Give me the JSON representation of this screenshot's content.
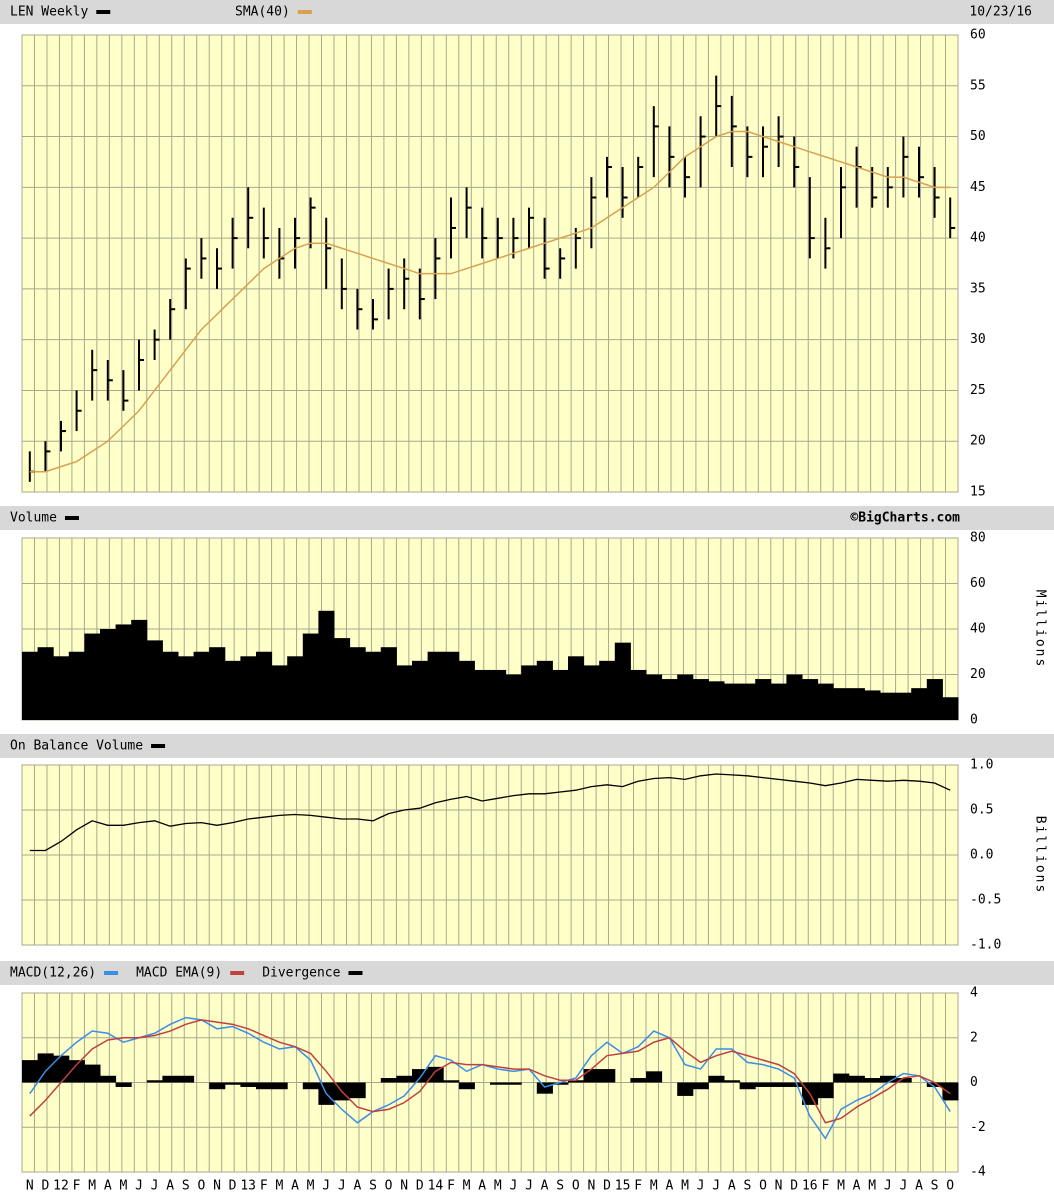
{
  "chart_data": [
    {
      "type": "hlc",
      "date": "10/23/16",
      "ohlc": {
        "name": "LEN Weekly",
        "color": "#000000",
        "high": [
          19,
          20,
          22,
          25,
          29,
          28,
          27,
          30,
          31,
          34,
          38,
          40,
          39,
          42,
          45,
          43,
          41,
          42,
          44,
          42,
          38,
          35,
          34,
          37,
          38,
          37,
          40,
          44,
          45,
          43,
          42,
          42,
          43,
          42,
          39,
          41,
          46,
          48,
          47,
          48,
          53,
          51,
          48,
          52,
          56,
          54,
          51,
          51,
          52,
          50,
          46,
          42,
          47,
          49,
          47,
          47,
          50,
          49,
          47,
          44
        ],
        "low": [
          16,
          17,
          19,
          21,
          24,
          24,
          23,
          25,
          28,
          30,
          33,
          36,
          35,
          37,
          39,
          38,
          36,
          37,
          39,
          35,
          33,
          31,
          31,
          32,
          33,
          32,
          34,
          38,
          40,
          38,
          38,
          38,
          39,
          36,
          36,
          37,
          39,
          44,
          42,
          44,
          46,
          45,
          44,
          45,
          50,
          47,
          46,
          46,
          47,
          45,
          38,
          37,
          40,
          43,
          43,
          43,
          44,
          44,
          42,
          40
        ],
        "close": [
          17,
          19,
          21,
          23,
          27,
          26,
          24,
          28,
          30,
          33,
          37,
          38,
          37,
          40,
          42,
          40,
          38,
          40,
          43,
          39,
          35,
          33,
          32,
          35,
          36,
          34,
          38,
          41,
          43,
          40,
          40,
          40,
          42,
          37,
          38,
          40,
          44,
          47,
          44,
          47,
          51,
          48,
          46,
          50,
          53,
          51,
          48,
          49,
          50,
          47,
          40,
          39,
          45,
          47,
          44,
          45,
          48,
          46,
          44,
          41
        ]
      },
      "series": [
        {
          "name": "SMA(40)",
          "color": "#d9a050",
          "values": [
            17,
            17,
            17.5,
            18,
            19,
            20,
            21.5,
            23,
            25,
            27,
            29,
            31,
            32.5,
            34,
            35.5,
            37,
            38,
            39,
            39.5,
            39.5,
            39,
            38.5,
            38,
            37.5,
            37,
            36.5,
            36.5,
            36.5,
            37,
            37.5,
            38,
            38.5,
            39,
            39.5,
            40,
            40.5,
            41,
            42,
            43,
            44,
            45,
            46.5,
            48,
            49,
            50,
            50.5,
            50.5,
            50,
            49.5,
            49,
            48.5,
            48,
            47.5,
            47,
            46.5,
            46,
            46,
            45.5,
            45,
            45
          ]
        }
      ],
      "ylim": [
        15,
        60
      ],
      "yticks": [
        15,
        20,
        25,
        30,
        35,
        40,
        45,
        50,
        55,
        60
      ],
      "grid": true
    },
    {
      "type": "bar",
      "source": "©BigCharts.com",
      "y_label": "Millions",
      "series": [
        {
          "name": "Volume",
          "color": "#000000",
          "values": [
            30,
            32,
            28,
            30,
            38,
            40,
            42,
            44,
            35,
            30,
            28,
            30,
            32,
            26,
            28,
            30,
            24,
            28,
            38,
            48,
            36,
            32,
            30,
            32,
            24,
            26,
            30,
            30,
            26,
            22,
            22,
            20,
            24,
            26,
            22,
            28,
            24,
            26,
            34,
            22,
            20,
            18,
            20,
            18,
            17,
            16,
            16,
            18,
            16,
            20,
            18,
            16,
            14,
            14,
            13,
            12,
            12,
            14,
            18,
            10
          ]
        }
      ],
      "ylim": [
        0,
        80
      ],
      "yticks": [
        0,
        20,
        40,
        60,
        80
      ],
      "grid": true
    },
    {
      "type": "line",
      "y_label": "Billions",
      "series": [
        {
          "name": "On Balance Volume",
          "color": "#000000",
          "values": [
            0.05,
            0.05,
            0.15,
            0.28,
            0.38,
            0.33,
            0.33,
            0.36,
            0.38,
            0.32,
            0.35,
            0.36,
            0.33,
            0.36,
            0.4,
            0.42,
            0.44,
            0.45,
            0.44,
            0.42,
            0.4,
            0.4,
            0.38,
            0.46,
            0.5,
            0.52,
            0.58,
            0.62,
            0.65,
            0.6,
            0.63,
            0.66,
            0.68,
            0.68,
            0.7,
            0.72,
            0.76,
            0.78,
            0.76,
            0.82,
            0.85,
            0.86,
            0.84,
            0.88,
            0.9,
            0.89,
            0.88,
            0.86,
            0.84,
            0.82,
            0.8,
            0.77,
            0.8,
            0.84,
            0.83,
            0.82,
            0.83,
            0.82,
            0.8,
            0.72
          ]
        }
      ],
      "ylim": [
        -1,
        1
      ],
      "yticks": [
        {
          "value": -1,
          "label": "-1.0"
        },
        {
          "value": -0.5,
          "label": "-0.5"
        },
        {
          "value": 0,
          "label": "0.0"
        },
        {
          "value": 0.5,
          "label": "0.5"
        },
        {
          "value": 1,
          "label": "1.0"
        }
      ],
      "grid": true
    },
    {
      "type": "macd",
      "categories": [
        "N",
        "D",
        "12",
        "F",
        "M",
        "A",
        "M",
        "J",
        "J",
        "A",
        "S",
        "O",
        "N",
        "D",
        "13",
        "F",
        "M",
        "A",
        "M",
        "J",
        "J",
        "A",
        "S",
        "O",
        "N",
        "D",
        "14",
        "F",
        "M",
        "A",
        "M",
        "J",
        "J",
        "A",
        "S",
        "O",
        "N",
        "D",
        "15",
        "F",
        "M",
        "A",
        "M",
        "J",
        "J",
        "A",
        "S",
        "O",
        "N",
        "D",
        "16",
        "F",
        "M",
        "A",
        "M",
        "J",
        "J",
        "A",
        "S",
        "O"
      ],
      "series": [
        {
          "name": "MACD(12,26)",
          "color": "#3a8ee6",
          "values": [
            -0.5,
            0.5,
            1.2,
            1.8,
            2.3,
            2.2,
            1.8,
            2.0,
            2.2,
            2.6,
            2.9,
            2.8,
            2.4,
            2.5,
            2.2,
            1.8,
            1.5,
            1.6,
            1.0,
            -0.5,
            -1.2,
            -1.8,
            -1.3,
            -1.0,
            -0.6,
            0.2,
            1.2,
            1.0,
            0.5,
            0.8,
            0.6,
            0.5,
            0.6,
            -0.2,
            0,
            0.2,
            1.2,
            1.8,
            1.3,
            1.6,
            2.3,
            2.0,
            0.8,
            0.6,
            1.5,
            1.5,
            0.9,
            0.8,
            0.6,
            0.2,
            -1.5,
            -2.5,
            -1.2,
            -0.8,
            -0.5,
            0,
            0.4,
            0.3,
            -0.2,
            -1.3
          ]
        },
        {
          "name": "MACD EMA(9)",
          "color": "#c04040",
          "values": [
            -1.5,
            -0.8,
            0,
            0.8,
            1.5,
            1.9,
            2.0,
            2.0,
            2.1,
            2.3,
            2.6,
            2.8,
            2.7,
            2.6,
            2.4,
            2.1,
            1.8,
            1.6,
            1.3,
            0.5,
            -0.4,
            -1.1,
            -1.3,
            -1.2,
            -0.9,
            -0.4,
            0.5,
            0.9,
            0.8,
            0.8,
            0.7,
            0.6,
            0.6,
            0.3,
            0.1,
            0.1,
            0.6,
            1.2,
            1.3,
            1.4,
            1.8,
            2.0,
            1.4,
            0.9,
            1.2,
            1.4,
            1.2,
            1.0,
            0.8,
            0.4,
            -0.5,
            -1.8,
            -1.6,
            -1.1,
            -0.7,
            -0.3,
            0.2,
            0.3,
            0,
            -0.5
          ]
        }
      ],
      "divergence": {
        "name": "Divergence",
        "color": "#000000",
        "values": [
          1.0,
          1.3,
          1.2,
          1.0,
          0.8,
          0.3,
          -0.2,
          0,
          0.1,
          0.3,
          0.3,
          0,
          -0.3,
          -0.1,
          -0.2,
          -0.3,
          -0.3,
          0,
          -0.3,
          -1.0,
          -0.8,
          -0.7,
          0,
          0.2,
          0.3,
          0.6,
          0.7,
          0.1,
          -0.3,
          0,
          -0.1,
          -0.1,
          0,
          -0.5,
          -0.1,
          0.1,
          0.6,
          0.6,
          0,
          0.2,
          0.5,
          0,
          -0.6,
          -0.3,
          0.3,
          0.1,
          -0.3,
          -0.2,
          -0.2,
          -0.2,
          -1.0,
          -0.7,
          0.4,
          0.3,
          0.2,
          0.3,
          0.2,
          0,
          -0.2,
          -0.8
        ]
      },
      "ylim": [
        -4,
        4
      ],
      "yticks": [
        -4,
        -2,
        0,
        2,
        4
      ],
      "grid": true
    }
  ]
}
